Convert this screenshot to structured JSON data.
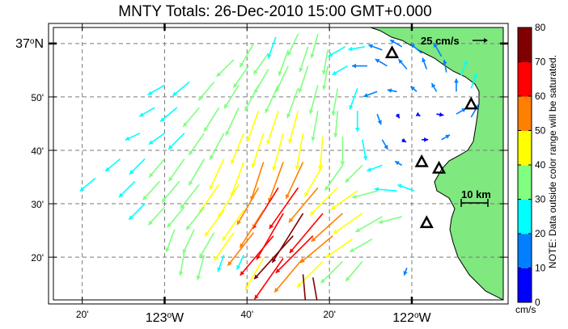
{
  "title": "MNTY Totals: 26-Dec-2010 15:00 GMT+0.000",
  "map": {
    "lon_range": [
      -123.45,
      -121.63
    ],
    "lat_range": [
      36.2,
      37.05
    ],
    "lon_ticks": [
      {
        "value": -123.3333,
        "label": "20'",
        "major": false
      },
      {
        "value": -123.0,
        "label": "123",
        "major": true
      },
      {
        "value": -122.6667,
        "label": "40'",
        "major": false
      },
      {
        "value": -122.3333,
        "label": "20'",
        "major": false
      },
      {
        "value": -122.0,
        "label": "122",
        "major": true
      }
    ],
    "lat_ticks": [
      {
        "value": 37.0,
        "label": "37",
        "suffix": "N",
        "major": true
      },
      {
        "value": 36.8333,
        "label": "50'",
        "major": false
      },
      {
        "value": 36.6667,
        "label": "40'",
        "major": false
      },
      {
        "value": 36.5,
        "label": "30'",
        "major": false
      },
      {
        "value": 36.3333,
        "label": "20'",
        "major": false
      }
    ],
    "lon_suffix": "W",
    "degree_symbol": "o",
    "land_color": "#7fe87f",
    "ocean_color": "#ffffff",
    "grid_line_color": "#7a7a7a",
    "reference_vector": {
      "label": "25 cm/s",
      "speed_cm_s": 25
    },
    "scale_bar": {
      "label": "10 km",
      "km": 10
    },
    "radar_sites": [
      {
        "name": "north",
        "lon": -122.08,
        "lat": 36.97
      },
      {
        "name": "east-coast",
        "lon": -121.76,
        "lat": 36.81
      },
      {
        "name": "mid-1",
        "lon": -121.96,
        "lat": 36.63
      },
      {
        "name": "mid-2",
        "lon": -121.89,
        "lat": 36.61
      },
      {
        "name": "south",
        "lon": -121.94,
        "lat": 36.44
      }
    ]
  },
  "colorbar": {
    "min": 0,
    "max": 80,
    "tick_labels": [
      "0",
      "10",
      "20",
      "30",
      "40",
      "50",
      "60",
      "70",
      "80"
    ],
    "colors": [
      "#0000ff",
      "#0080ff",
      "#00ffff",
      "#80ff80",
      "#ffff00",
      "#ff8000",
      "#ff0000",
      "#800000"
    ],
    "units": "cm/s",
    "note": "NOTE: Data outside color range will be saturated."
  },
  "current_field": {
    "description": "surface current vectors; each entry is [lon, lat, speed_cm_s, direction_deg_clockwise_from_north]",
    "vectors": [
      [
        -122.55,
        37.02,
        28,
        200
      ],
      [
        -122.46,
        37.03,
        30,
        205
      ],
      [
        -122.38,
        37.03,
        31,
        195
      ],
      [
        -122.64,
        37.0,
        34,
        210
      ],
      [
        -122.58,
        36.97,
        32,
        215
      ],
      [
        -122.5,
        36.98,
        34,
        200
      ],
      [
        -122.42,
        36.99,
        33,
        198
      ],
      [
        -122.34,
        36.98,
        31,
        190
      ],
      [
        -122.27,
        36.99,
        24,
        240
      ],
      [
        -122.19,
        36.99,
        21,
        260
      ],
      [
        -122.12,
        36.98,
        18,
        290
      ],
      [
        -122.04,
        36.99,
        17,
        300
      ],
      [
        -121.96,
        36.97,
        18,
        310
      ],
      [
        -121.88,
        36.96,
        19,
        330
      ],
      [
        -122.72,
        36.95,
        30,
        225
      ],
      [
        -122.66,
        36.93,
        33,
        215
      ],
      [
        -122.58,
        36.92,
        35,
        210
      ],
      [
        -122.5,
        36.93,
        36,
        205
      ],
      [
        -122.42,
        36.93,
        35,
        198
      ],
      [
        -122.34,
        36.93,
        30,
        190
      ],
      [
        -122.26,
        36.93,
        22,
        240
      ],
      [
        -122.18,
        36.93,
        19,
        270
      ],
      [
        -122.1,
        36.93,
        17,
        300
      ],
      [
        -122.02,
        36.92,
        16,
        320
      ],
      [
        -121.94,
        36.92,
        15,
        340
      ],
      [
        -121.86,
        36.91,
        16,
        350
      ],
      [
        -121.8,
        36.9,
        20,
        20
      ],
      [
        -123.0,
        36.87,
        24,
        240
      ],
      [
        -122.9,
        36.88,
        27,
        230
      ],
      [
        -122.8,
        36.88,
        30,
        220
      ],
      [
        -122.7,
        36.87,
        34,
        212
      ],
      [
        -122.62,
        36.87,
        36,
        208
      ],
      [
        -122.54,
        36.87,
        38,
        205
      ],
      [
        -122.46,
        36.86,
        39,
        200
      ],
      [
        -122.38,
        36.87,
        37,
        195
      ],
      [
        -122.3,
        36.86,
        34,
        190
      ],
      [
        -122.22,
        36.86,
        28,
        200
      ],
      [
        -122.14,
        36.85,
        18,
        250
      ],
      [
        -122.06,
        36.85,
        12,
        280
      ],
      [
        -121.98,
        36.85,
        10,
        310
      ],
      [
        -121.9,
        36.85,
        12,
        330
      ],
      [
        -121.82,
        36.85,
        16,
        0
      ],
      [
        -121.76,
        36.86,
        20,
        20
      ],
      [
        -123.04,
        36.8,
        22,
        240
      ],
      [
        -122.95,
        36.8,
        27,
        230
      ],
      [
        -122.86,
        36.8,
        31,
        220
      ],
      [
        -122.78,
        36.8,
        35,
        212
      ],
      [
        -122.7,
        36.8,
        38,
        205
      ],
      [
        -122.62,
        36.79,
        41,
        200
      ],
      [
        -122.54,
        36.79,
        44,
        198
      ],
      [
        -122.46,
        36.79,
        42,
        195
      ],
      [
        -122.38,
        36.79,
        38,
        190
      ],
      [
        -122.3,
        36.79,
        33,
        185
      ],
      [
        -122.22,
        36.79,
        26,
        180
      ],
      [
        -122.14,
        36.78,
        14,
        160
      ],
      [
        -122.06,
        36.78,
        6,
        150
      ],
      [
        -121.98,
        36.78,
        5,
        120
      ],
      [
        -121.9,
        36.78,
        9,
        100
      ],
      [
        -121.82,
        36.78,
        14,
        60
      ],
      [
        -121.76,
        36.77,
        18,
        30
      ],
      [
        -123.1,
        36.72,
        20,
        245
      ],
      [
        -123.0,
        36.72,
        24,
        235
      ],
      [
        -122.92,
        36.72,
        28,
        225
      ],
      [
        -122.84,
        36.72,
        33,
        215
      ],
      [
        -122.76,
        36.72,
        37,
        208
      ],
      [
        -122.68,
        36.72,
        41,
        202
      ],
      [
        -122.6,
        36.72,
        45,
        198
      ],
      [
        -122.52,
        36.72,
        48,
        195
      ],
      [
        -122.44,
        36.72,
        46,
        190
      ],
      [
        -122.36,
        36.71,
        42,
        185
      ],
      [
        -122.28,
        36.71,
        36,
        180
      ],
      [
        -122.2,
        36.7,
        26,
        170
      ],
      [
        -122.12,
        36.7,
        14,
        150
      ],
      [
        -122.04,
        36.7,
        6,
        120
      ],
      [
        -121.96,
        36.7,
        8,
        90
      ],
      [
        -121.88,
        36.7,
        12,
        60
      ],
      [
        -123.18,
        36.64,
        24,
        230
      ],
      [
        -123.08,
        36.64,
        27,
        225
      ],
      [
        -123.0,
        36.64,
        30,
        220
      ],
      [
        -122.92,
        36.64,
        34,
        215
      ],
      [
        -122.84,
        36.64,
        38,
        210
      ],
      [
        -122.76,
        36.64,
        42,
        205
      ],
      [
        -122.68,
        36.63,
        46,
        200
      ],
      [
        -122.6,
        36.63,
        50,
        198
      ],
      [
        -122.52,
        36.63,
        53,
        200
      ],
      [
        -122.44,
        36.63,
        50,
        205
      ],
      [
        -122.36,
        36.62,
        45,
        210
      ],
      [
        -122.28,
        36.62,
        38,
        215
      ],
      [
        -122.2,
        36.62,
        30,
        225
      ],
      [
        -122.12,
        36.62,
        20,
        250
      ],
      [
        -122.04,
        36.62,
        10,
        300
      ],
      [
        -123.28,
        36.58,
        25,
        230
      ],
      [
        -123.12,
        36.57,
        28,
        225
      ],
      [
        -123.02,
        36.57,
        31,
        222
      ],
      [
        -122.94,
        36.57,
        34,
        220
      ],
      [
        -122.86,
        36.56,
        38,
        218
      ],
      [
        -122.78,
        36.56,
        43,
        215
      ],
      [
        -122.7,
        36.56,
        48,
        212
      ],
      [
        -122.62,
        36.55,
        53,
        210
      ],
      [
        -122.54,
        36.55,
        60,
        212
      ],
      [
        -122.46,
        36.55,
        62,
        215
      ],
      [
        -122.38,
        36.55,
        56,
        220
      ],
      [
        -122.3,
        36.55,
        48,
        225
      ],
      [
        -122.22,
        36.54,
        40,
        235
      ],
      [
        -122.14,
        36.54,
        32,
        255
      ],
      [
        -122.06,
        36.54,
        28,
        275
      ],
      [
        -121.99,
        36.54,
        22,
        290
      ],
      [
        -123.08,
        36.5,
        28,
        225
      ],
      [
        -123.0,
        36.49,
        30,
        222
      ],
      [
        -122.92,
        36.49,
        33,
        220
      ],
      [
        -122.84,
        36.49,
        36,
        218
      ],
      [
        -122.76,
        36.48,
        40,
        216
      ],
      [
        -122.68,
        36.48,
        46,
        215
      ],
      [
        -122.6,
        36.48,
        55,
        212
      ],
      [
        -122.52,
        36.47,
        66,
        210
      ],
      [
        -122.44,
        36.47,
        72,
        212
      ],
      [
        -122.36,
        36.47,
        64,
        220
      ],
      [
        -122.28,
        36.47,
        52,
        228
      ],
      [
        -122.2,
        36.47,
        44,
        235
      ],
      [
        -122.12,
        36.46,
        38,
        240
      ],
      [
        -122.04,
        36.46,
        30,
        255
      ],
      [
        -122.96,
        36.42,
        30,
        200
      ],
      [
        -122.88,
        36.42,
        33,
        205
      ],
      [
        -122.8,
        36.41,
        36,
        210
      ],
      [
        -122.72,
        36.41,
        42,
        215
      ],
      [
        -122.64,
        36.41,
        52,
        218
      ],
      [
        -122.56,
        36.4,
        64,
        220
      ],
      [
        -122.48,
        36.4,
        72,
        222
      ],
      [
        -122.4,
        36.4,
        65,
        225
      ],
      [
        -122.32,
        36.4,
        52,
        230
      ],
      [
        -122.24,
        36.39,
        40,
        235
      ],
      [
        -122.16,
        36.39,
        32,
        240
      ],
      [
        -122.92,
        36.35,
        30,
        190
      ],
      [
        -122.84,
        36.34,
        32,
        195
      ],
      [
        -122.76,
        36.34,
        22,
        200
      ],
      [
        -122.68,
        36.34,
        20,
        205
      ],
      [
        -122.6,
        36.33,
        45,
        210
      ],
      [
        -122.52,
        36.33,
        62,
        215
      ],
      [
        -122.44,
        36.33,
        55,
        220
      ],
      [
        -122.36,
        36.32,
        45,
        225
      ],
      [
        -122.28,
        36.32,
        38,
        225
      ],
      [
        -122.2,
        36.32,
        32,
        220
      ],
      [
        -122.02,
        36.3,
        10,
        200
      ],
      [
        -122.44,
        36.28,
        80,
        175
      ],
      [
        -122.4,
        36.27,
        80,
        170
      ]
    ]
  }
}
